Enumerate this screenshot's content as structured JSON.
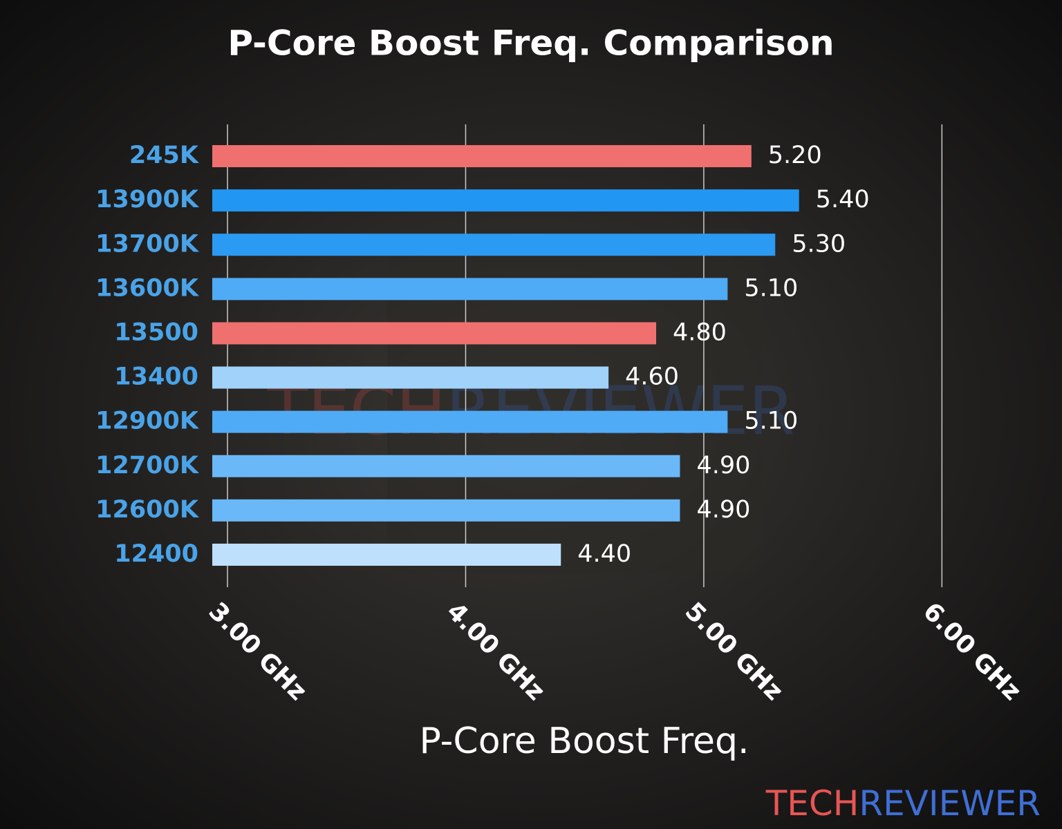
{
  "chart_data": {
    "type": "barh",
    "title": "P-Core Boost Freq. Comparison",
    "x_label": "P-Core Boost Freq.",
    "categories": [
      "245K",
      "13900K",
      "13700K",
      "13600K",
      "13500",
      "13400",
      "12900K",
      "12700K",
      "12600K",
      "12400"
    ],
    "values": [
      5.2,
      5.4,
      5.3,
      5.1,
      4.8,
      4.6,
      5.1,
      4.9,
      4.9,
      4.4
    ],
    "value_labels": [
      "5.20",
      "5.40",
      "5.30",
      "5.10",
      "4.80",
      "4.60",
      "5.10",
      "4.90",
      "4.90",
      "4.40"
    ],
    "colors": [
      "#f07070",
      "#2196f3",
      "#2a9af3",
      "#4fabf5",
      "#f07070",
      "#a0d2fa",
      "#4fabf5",
      "#6ab8f7",
      "#6ab8f7",
      "#bfe0fc"
    ],
    "xlim": [
      2.936,
      6.06
    ],
    "xticks": [
      {
        "value": 3,
        "label": "3.00 GHz"
      },
      {
        "value": 4,
        "label": "4.00 GHz"
      },
      {
        "value": 5,
        "label": "5.00 GHz"
      },
      {
        "value": 6,
        "label": "6.00 GHz"
      }
    ],
    "grid": true,
    "watermark": [
      "TECH",
      "REVIEWER"
    ]
  }
}
